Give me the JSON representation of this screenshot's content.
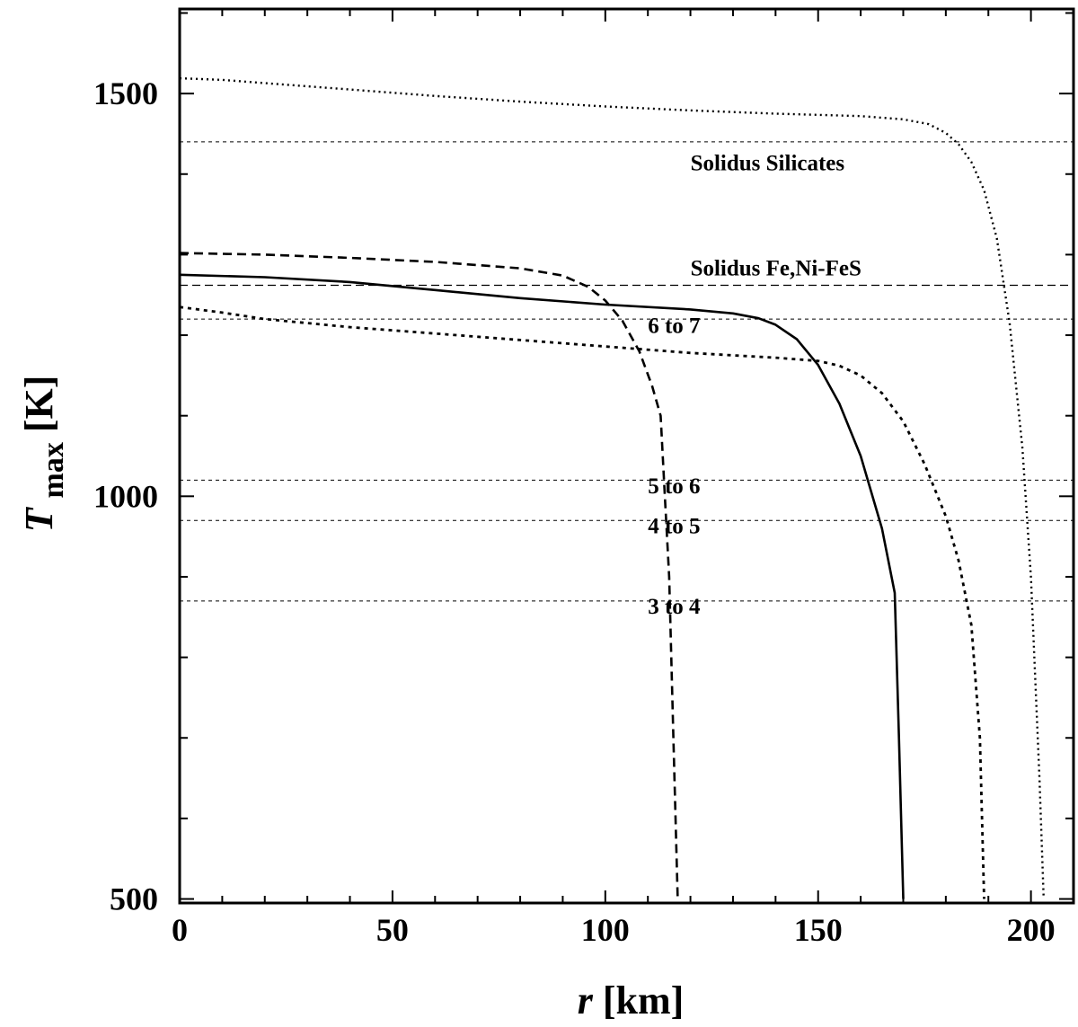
{
  "chart_data": {
    "type": "line",
    "title": "",
    "xlabel": {
      "main": "r",
      "unit": "[km]"
    },
    "ylabel": {
      "main": "T",
      "sub": "max",
      "unit": "[K]"
    },
    "xlim": [
      0,
      210
    ],
    "ylim": [
      495,
      1605
    ],
    "x_ticks": [
      0,
      50,
      100,
      150,
      200
    ],
    "y_ticks": [
      500,
      1000,
      1500
    ],
    "y_minor_step": 100,
    "x_minor_step": 10,
    "grid": false,
    "legend": "none",
    "reference_lines": [
      {
        "label": "Solidus Silicates",
        "y": 1440,
        "style": "dotted",
        "label_x": 120,
        "label_y": 1415
      },
      {
        "label": "Solidus Fe,Ni-FeS",
        "y": 1262,
        "style": "dashed",
        "label_x": 120,
        "label_y": 1284
      },
      {
        "label": "6 to 7",
        "y": 1220,
        "style": "dotted",
        "label_x": 110,
        "label_y": 1213
      },
      {
        "label": "5 to 6",
        "y": 1020,
        "style": "dotted",
        "label_x": 110,
        "label_y": 1014
      },
      {
        "label": "4 to 5",
        "y": 970,
        "style": "dotted",
        "label_x": 110,
        "label_y": 964
      },
      {
        "label": "3 to 4",
        "y": 870,
        "style": "dotted",
        "label_x": 110,
        "label_y": 864
      }
    ],
    "series": [
      {
        "style": "dotted-fine",
        "x": [
          0,
          10,
          20,
          40,
          60,
          80,
          100,
          120,
          140,
          160,
          170,
          176,
          180,
          183,
          186,
          189,
          192,
          195,
          198,
          200,
          202,
          203
        ],
        "y": [
          1519,
          1517,
          1513,
          1505,
          1497,
          1490,
          1484,
          1479,
          1475,
          1472,
          1468,
          1462,
          1451,
          1437,
          1415,
          1380,
          1320,
          1215,
          1060,
          900,
          650,
          500
        ]
      },
      {
        "style": "dashed",
        "x": [
          0,
          20,
          40,
          60,
          80,
          90,
          96,
          100,
          104,
          108,
          111,
          113,
          114,
          115,
          116,
          117
        ],
        "y": [
          1302,
          1300,
          1296,
          1291,
          1283,
          1274,
          1260,
          1243,
          1218,
          1180,
          1137,
          1100,
          1000,
          900,
          700,
          500
        ]
      },
      {
        "style": "solid",
        "x": [
          0,
          20,
          40,
          60,
          80,
          100,
          120,
          130,
          136,
          140,
          145,
          150,
          155,
          160,
          165,
          168,
          169,
          170
        ],
        "y": [
          1275,
          1272,
          1266,
          1256,
          1246,
          1238,
          1232,
          1227,
          1221,
          1213,
          1195,
          1163,
          1115,
          1050,
          960,
          880,
          700,
          500
        ]
      },
      {
        "style": "dotted-coarse",
        "x": [
          0,
          10,
          20,
          40,
          60,
          80,
          100,
          120,
          140,
          150,
          155,
          160,
          165,
          170,
          175,
          180,
          183,
          186,
          188,
          189
        ],
        "y": [
          1235,
          1228,
          1220,
          1210,
          1202,
          1194,
          1186,
          1178,
          1172,
          1168,
          1162,
          1150,
          1128,
          1093,
          1040,
          975,
          920,
          840,
          700,
          500
        ]
      }
    ]
  }
}
